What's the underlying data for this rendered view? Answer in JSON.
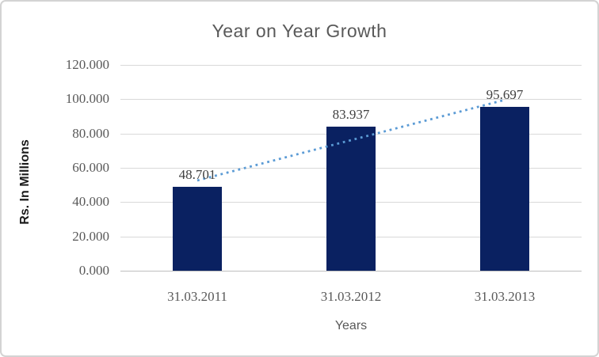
{
  "chart_data": {
    "type": "bar",
    "title": "Year on Year Growth",
    "categories": [
      "31.03.2011",
      "31.03.2012",
      "31.03.2013"
    ],
    "values": [
      48.701,
      83.937,
      95.697
    ],
    "data_labels": [
      "48.701",
      "83.937",
      "95.697"
    ],
    "xlabel": "Years",
    "ylabel": "Rs. In Millions",
    "ylim": [
      0,
      120
    ],
    "yticks": [
      0,
      20,
      40,
      60,
      80,
      100,
      120
    ],
    "ytick_labels": [
      "0.000",
      "20.000",
      "40.000",
      "60.000",
      "80.000",
      "100.000",
      "120.000"
    ],
    "grid": true,
    "legend": "none",
    "trendline": {
      "type": "linear",
      "style": "dotted",
      "color": "#5b9bd5"
    },
    "colors": {
      "bar": "#0a2161",
      "gridline": "#d9d9d9",
      "axis_line": "#bfbfbf",
      "title_text": "#595959",
      "tick_text": "#595959",
      "data_label_text": "#404040",
      "frame_border": "#d3d3d3",
      "background": "#ffffff"
    }
  }
}
